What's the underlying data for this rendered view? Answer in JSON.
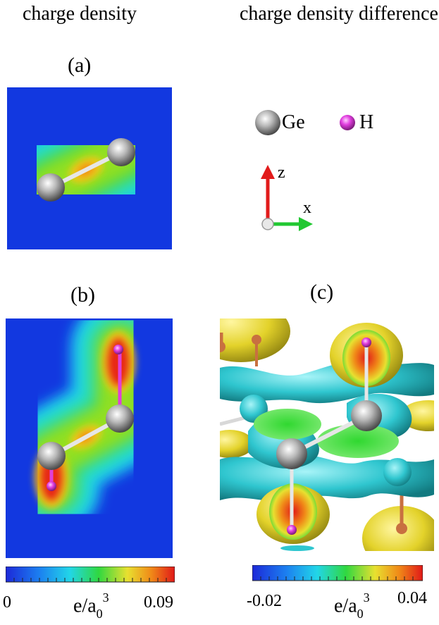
{
  "headings": {
    "left": "charge density",
    "right": "charge density difference"
  },
  "panels": {
    "a": "(a)",
    "b": "(b)",
    "c": "(c)"
  },
  "legend": {
    "ge_label": "Ge",
    "h_label": "H",
    "ge_color": "#a8a8a8",
    "h_color": "#e23fe0"
  },
  "axes": {
    "z_label": "z",
    "x_label": "x",
    "z_color": "#e21b1b",
    "x_color": "#22c832"
  },
  "colorbars": {
    "left": {
      "min": "0",
      "max": "0.09",
      "unit_base": "e/a",
      "unit_sub": "0",
      "unit_sup": "3"
    },
    "right": {
      "min": "-0.02",
      "max": "0.04",
      "unit_base": "e/a",
      "unit_sub": "0",
      "unit_sup": "3"
    }
  },
  "colors": {
    "map_background": "#1238e0",
    "isosurface_positive": "#e3d22a",
    "isosurface_negative": "#2fc6cf"
  }
}
